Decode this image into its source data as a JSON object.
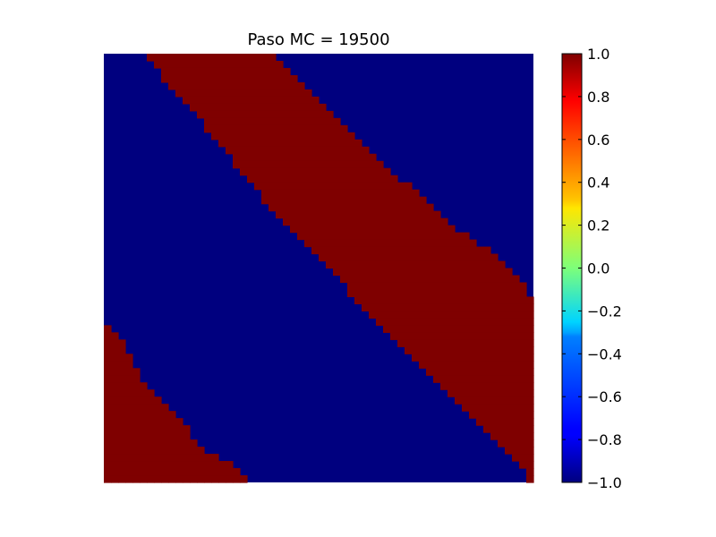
{
  "chart_data": {
    "type": "heatmap",
    "title": "Paso MC = 19500",
    "xlabel": "",
    "ylabel": "",
    "axes_visible": false,
    "colormap": "jet",
    "values_range": [
      -1.0,
      1.0
    ],
    "states": [
      -1,
      1
    ],
    "state_colors": {
      "-1": "#00007f",
      "1": "#7f0000"
    },
    "description_levels": "Two-state lattice with diagonal stripe domains; state +1 forms a main diagonal band and a lower-left corner region, state -1 fills the rest.",
    "grid_size": 60,
    "domain_boundaries": {
      "main_band_upper_edge": [
        [
          0,
          23.0
        ],
        [
          5,
          28.5
        ],
        [
          10,
          33.0
        ],
        [
          15,
          38.0
        ],
        [
          20,
          44.5
        ],
        [
          25,
          50.0
        ],
        [
          30,
          57.0
        ],
        [
          35,
          60.0
        ]
      ],
      "main_band_lower_edge": [
        [
          0,
          5.5
        ],
        [
          5,
          9.5
        ],
        [
          10,
          14.0
        ],
        [
          15,
          18.0
        ],
        [
          20,
          22.0
        ],
        [
          25,
          26.0
        ],
        [
          30,
          31.5
        ],
        [
          35,
          35.5
        ],
        [
          40,
          40.5
        ],
        [
          45,
          45.5
        ],
        [
          50,
          51.0
        ],
        [
          55,
          55.5
        ],
        [
          59,
          59.0
        ]
      ],
      "corner_region_edge": [
        [
          38,
          0.0
        ],
        [
          40,
          2.5
        ],
        [
          45,
          5.0
        ],
        [
          50,
          9.5
        ],
        [
          55,
          13.5
        ],
        [
          59,
          20.0
        ]
      ]
    },
    "colorbar": {
      "ticks": [
        "1.0",
        "0.8",
        "0.6",
        "0.4",
        "0.2",
        "0.0",
        "−0.2",
        "−0.4",
        "−0.6",
        "−0.8",
        "−1.0"
      ],
      "tick_values": [
        1.0,
        0.8,
        0.6,
        0.4,
        0.2,
        0.0,
        -0.2,
        -0.4,
        -0.6,
        -0.8,
        -1.0
      ]
    }
  }
}
